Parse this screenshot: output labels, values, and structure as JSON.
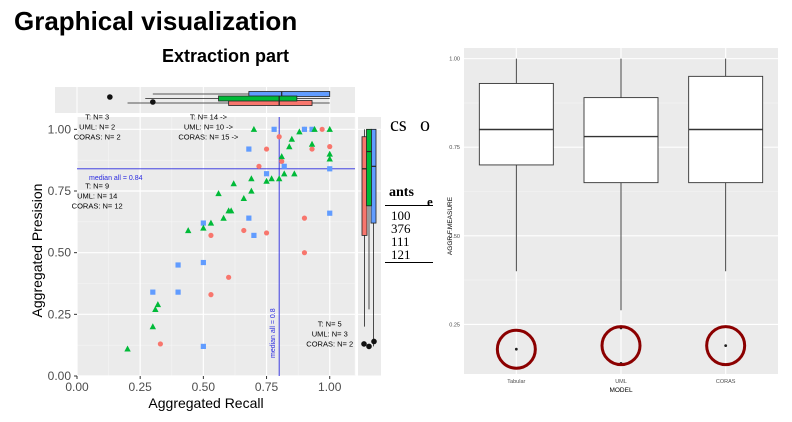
{
  "slide": {
    "title": "Graphical visualization",
    "subtitle": "Extraction part"
  },
  "fragments": {
    "cs": "cs",
    "o": "o",
    "ants": "ants",
    "e": "e",
    "rows": [
      "100",
      "376",
      "111",
      "121"
    ]
  },
  "chart_data": [
    {
      "type": "scatter",
      "title": "",
      "xlabel": "Aggregated Recall",
      "ylabel": "Aggregated Presision",
      "xlim": [
        0,
        1.1
      ],
      "ylim": [
        0,
        1.05
      ],
      "xticks": [
        0.0,
        0.25,
        0.5,
        0.75,
        1.0
      ],
      "xtick_labels": [
        "0.00",
        "0.25",
        "0.50",
        "0.75",
        "1.00"
      ],
      "yticks": [
        0.0,
        0.25,
        0.5,
        0.75,
        1.0
      ],
      "ytick_labels": [
        "0.00",
        "0.25",
        "0.50",
        "0.75",
        "1.00"
      ],
      "colors": {
        "Tabular": "#F8766D",
        "UML": "#619CFF",
        "CORAS": "#00BA38"
      },
      "series": [
        {
          "name": "Tabular",
          "marker": "circle",
          "points": [
            [
              0.33,
              0.13
            ],
            [
              0.53,
              0.33
            ],
            [
              0.53,
              0.57
            ],
            [
              0.6,
              0.4
            ],
            [
              0.66,
              0.59
            ],
            [
              0.72,
              0.85
            ],
            [
              0.75,
              0.92
            ],
            [
              0.75,
              0.58
            ],
            [
              0.8,
              0.97
            ],
            [
              0.81,
              0.87
            ],
            [
              0.9,
              1.0
            ],
            [
              0.9,
              0.64
            ],
            [
              0.9,
              0.5
            ],
            [
              0.93,
              0.92
            ],
            [
              0.97,
              1.0
            ],
            [
              1.0,
              0.93
            ]
          ]
        },
        {
          "name": "UML",
          "marker": "square",
          "points": [
            [
              0.3,
              0.34
            ],
            [
              0.4,
              0.45
            ],
            [
              0.4,
              0.34
            ],
            [
              0.5,
              0.62
            ],
            [
              0.5,
              0.12
            ],
            [
              0.5,
              0.46
            ],
            [
              0.68,
              0.92
            ],
            [
              0.68,
              0.64
            ],
            [
              0.7,
              0.57
            ],
            [
              0.75,
              0.82
            ],
            [
              0.78,
              1.0
            ],
            [
              0.82,
              0.85
            ],
            [
              0.9,
              1.0
            ],
            [
              0.93,
              1.0
            ],
            [
              1.0,
              0.84
            ],
            [
              1.0,
              0.66
            ]
          ]
        },
        {
          "name": "CORAS",
          "marker": "triangle",
          "points": [
            [
              0.2,
              0.11
            ],
            [
              0.3,
              0.2
            ],
            [
              0.31,
              0.27
            ],
            [
              0.32,
              0.29
            ],
            [
              0.44,
              0.59
            ],
            [
              0.5,
              0.6
            ],
            [
              0.53,
              0.62
            ],
            [
              0.56,
              0.74
            ],
            [
              0.58,
              0.64
            ],
            [
              0.6,
              0.67
            ],
            [
              0.61,
              0.67
            ],
            [
              0.62,
              0.78
            ],
            [
              0.66,
              0.72
            ],
            [
              0.69,
              0.75
            ],
            [
              0.69,
              0.8
            ],
            [
              0.7,
              1.0
            ],
            [
              0.75,
              0.79
            ],
            [
              0.77,
              0.8
            ],
            [
              0.8,
              0.8
            ],
            [
              0.81,
              0.89
            ],
            [
              0.82,
              0.82
            ],
            [
              0.84,
              0.93
            ],
            [
              0.85,
              0.96
            ],
            [
              0.86,
              0.82
            ],
            [
              0.88,
              0.99
            ],
            [
              0.93,
              0.94
            ],
            [
              0.94,
              1.0
            ],
            [
              1.0,
              1.0
            ],
            [
              1.0,
              0.9
            ],
            [
              1.0,
              0.88
            ]
          ]
        }
      ],
      "reference_lines": [
        {
          "orientation": "horizontal",
          "value": 0.84,
          "label": "median all = 0.84"
        },
        {
          "orientation": "vertical",
          "value": 0.8,
          "label": "median all = 0.8"
        }
      ],
      "annotations": [
        {
          "lines": [
            "T: N= 3",
            "UML: N= 2",
            "CORAS: N= 2"
          ],
          "x": 0.08,
          "y": 1.0
        },
        {
          "lines": [
            "T: N= 14 ->",
            "UML: N= 10 ->",
            "CORAS: N= 15 ->"
          ],
          "x": 0.52,
          "y": 1.0
        },
        {
          "lines": [
            "T: N= 9",
            "UML: N= 14",
            "CORAS: N= 12"
          ],
          "x": 0.08,
          "y": 0.72
        },
        {
          "lines": [
            "T: N= 5",
            "UML: N= 3",
            "CORAS: N= 2"
          ],
          "x": 1.0,
          "y": 0.16
        }
      ],
      "marginal_recall_boxes": [
        {
          "name": "Tabular",
          "q1": 0.6,
          "median": 0.8,
          "q3": 0.93,
          "whisker_low": 0.2,
          "whisker_high": 1.0
        },
        {
          "name": "UML",
          "q1": 0.68,
          "median": 0.81,
          "q3": 1.0,
          "whisker_low": 0.3,
          "whisker_high": 1.0
        },
        {
          "name": "CORAS",
          "q1": 0.56,
          "median": 0.8,
          "q3": 0.87,
          "whisker_low": 0.27,
          "whisker_high": 1.0
        }
      ],
      "marginal_recall_outliers": [
        0.13,
        0.3
      ],
      "marginal_precision_boxes": [
        {
          "name": "Tabular",
          "q1": 0.57,
          "median": 0.84,
          "q3": 0.97,
          "whisker_low": 0.2,
          "whisker_high": 1.0
        },
        {
          "name": "UML",
          "q1": 0.62,
          "median": 0.85,
          "q3": 1.0,
          "whisker_low": 0.12,
          "whisker_high": 1.0
        },
        {
          "name": "CORAS",
          "q1": 0.69,
          "median": 0.91,
          "q3": 1.0,
          "whisker_low": 0.27,
          "whisker_high": 1.0
        }
      ],
      "marginal_precision_outliers": [
        0.13,
        0.12,
        0.14
      ]
    },
    {
      "type": "box",
      "xlabel": "MODEL",
      "ylabel": "AGGR.F.MEASURE",
      "categories": [
        "Tabular",
        "UML",
        "CORAS"
      ],
      "ylim": [
        0.11,
        1.03
      ],
      "yticks": [
        0.25,
        0.5,
        0.75,
        1.0
      ],
      "ytick_labels": [
        "0.25",
        "0.50",
        "0.75",
        "1.00"
      ],
      "boxes": [
        {
          "name": "Tabular",
          "whisker_low": 0.4,
          "q1": 0.7,
          "median": 0.8,
          "q3": 0.93,
          "whisker_high": 1.0
        },
        {
          "name": "UML",
          "whisker_low": 0.29,
          "q1": 0.65,
          "median": 0.78,
          "q3": 0.89,
          "whisker_high": 1.0
        },
        {
          "name": "CORAS",
          "whisker_low": 0.4,
          "q1": 0.65,
          "median": 0.8,
          "q3": 0.95,
          "whisker_high": 1.0
        }
      ],
      "outliers": [
        {
          "category": "Tabular",
          "values": [
            0.18
          ]
        },
        {
          "category": "UML",
          "values": [
            0.14,
            0.24
          ]
        },
        {
          "category": "CORAS",
          "values": [
            0.19
          ]
        }
      ],
      "highlight": "dark-red circles around outliers",
      "highlight_color": "#8B0000"
    }
  ]
}
